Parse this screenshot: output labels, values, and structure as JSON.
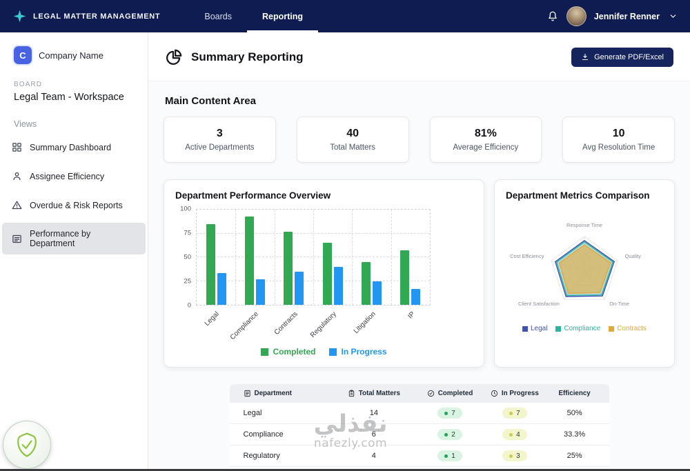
{
  "navbar": {
    "brand": "LEGAL MATTER MANAGEMENT",
    "items": [
      {
        "label": "Boards",
        "active": false
      },
      {
        "label": "Reporting",
        "active": true
      }
    ],
    "user_name": "Jennifer Renner"
  },
  "sidebar": {
    "company_initial": "C",
    "company_name": "Company Name",
    "board_label": "BOARD",
    "board_name": "Legal Team - Workspace",
    "views_label": "Views",
    "items": [
      {
        "label": "Summary Dashboard",
        "icon": "grid-icon",
        "active": false
      },
      {
        "label": "Assignee Efficiency",
        "icon": "person-icon",
        "active": false
      },
      {
        "label": "Overdue & Risk Reports",
        "icon": "warning-triangle-icon",
        "active": false
      },
      {
        "label": "Performance by Department",
        "icon": "report-card-icon",
        "active": true
      }
    ]
  },
  "header": {
    "title": "Summary Reporting",
    "icon": "pie-chart-icon",
    "export_button": "Generate PDF/Excel"
  },
  "main": {
    "section_title": "Main Content Area",
    "stats": [
      {
        "value": "3",
        "label": "Active Departments"
      },
      {
        "value": "40",
        "label": "Total Matters"
      },
      {
        "value": "81%",
        "label": "Average Efficiency"
      },
      {
        "value": "10",
        "label": "Avg Resolution Time"
      }
    ]
  },
  "chart_data": [
    {
      "type": "bar",
      "title": "Department Performance Overview",
      "categories": [
        "Legal",
        "Compliance",
        "Contracts",
        "Regulatory",
        "Litigation",
        "IP"
      ],
      "series": [
        {
          "name": "Completed",
          "color": "#33a852",
          "values": [
            85,
            93,
            77,
            65,
            45,
            57
          ]
        },
        {
          "name": "In Progress",
          "color": "#2196f3",
          "values": [
            33,
            27,
            35,
            40,
            25,
            17
          ]
        }
      ],
      "ylim": [
        0,
        100
      ],
      "yticks": [
        0,
        25,
        50,
        75,
        100
      ],
      "grid": "dashed",
      "legend_position": "bottom"
    },
    {
      "type": "radar",
      "title": "Department Metrics Comparison",
      "axes": [
        "Response Time",
        "Quality",
        "On-Time",
        "Client Satisfaction",
        "Cost Efficiency"
      ],
      "series": [
        {
          "name": "Legal",
          "color": "#3f51b5",
          "fill": "rgba(63,81,181,0.12)",
          "values": [
            88,
            90,
            88,
            90,
            88
          ]
        },
        {
          "name": "Compliance",
          "color": "#2bb5a0",
          "fill": "rgba(43,181,160,0.25)",
          "values": [
            84,
            86,
            84,
            86,
            84
          ]
        },
        {
          "name": "Contracts",
          "color": "#e0a93e",
          "fill": "rgba(215,184,106,0.85)",
          "values": [
            76,
            79,
            76,
            79,
            76
          ]
        }
      ],
      "legend_position": "bottom"
    }
  ],
  "table": {
    "headers": [
      "Department",
      "Total Matters",
      "Completed",
      "In Progress",
      "Efficiency"
    ],
    "rows": [
      {
        "department": "Legal",
        "total": "14",
        "completed": "7",
        "in_progress": "7",
        "efficiency": "50%"
      },
      {
        "department": "Compliance",
        "total": "6",
        "completed": "2",
        "in_progress": "4",
        "efficiency": "33.3%"
      },
      {
        "department": "Regulatory",
        "total": "4",
        "completed": "1",
        "in_progress": "3",
        "efficiency": "25%"
      }
    ],
    "pill_colors": {
      "completed_bg": "#d9f4e2",
      "completed_dot": "#1ea653",
      "in_progress_bg": "#f3f6cd",
      "in_progress_dot": "#c9ce4a"
    }
  },
  "watermark": {
    "title": "نفذلي",
    "url": "nafezly.com"
  },
  "colors": {
    "navbar": "#0e1c52",
    "accent_teal": "#3fc8c8",
    "export_button": "#15245c"
  }
}
